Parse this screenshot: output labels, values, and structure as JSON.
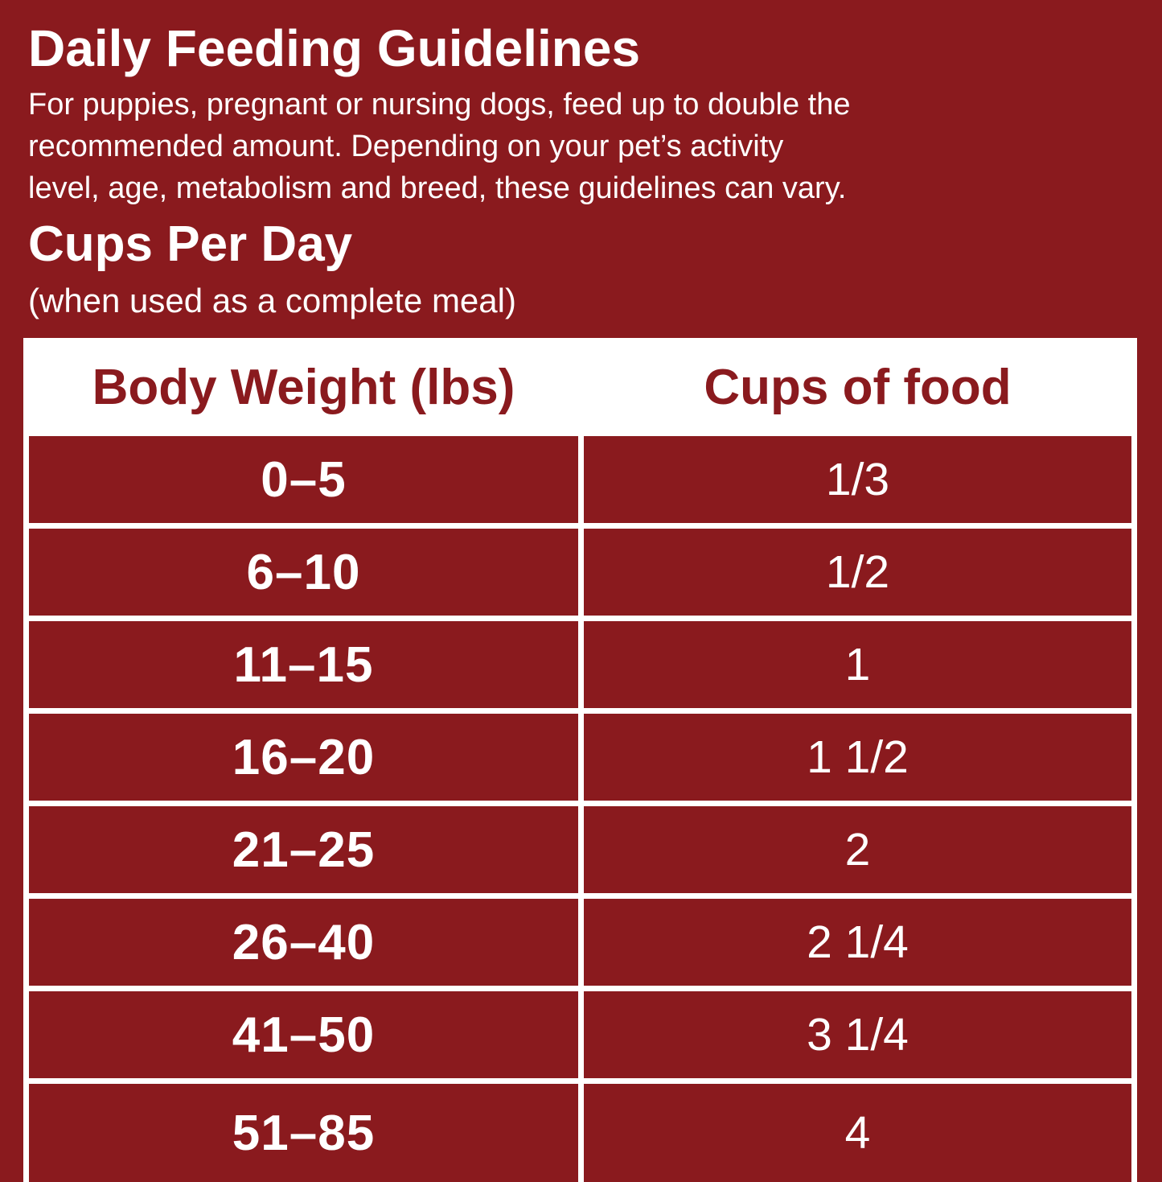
{
  "colors": {
    "background": "#8A1A1E",
    "surface": "#FFFFFF",
    "table_text": "#8A1A1E",
    "text": "#FFFFFF"
  },
  "intro": {
    "title": "Daily Feeding Guidelines",
    "description_lines": [
      "For puppies, pregnant or nursing dogs, feed up to double the",
      "recommended amount. Depending on your pet’s activity",
      "level, age, metabolism and breed, these guidelines can vary."
    ],
    "subheading": "Cups Per Day",
    "note": "(when used as a complete meal)"
  },
  "chart_data": {
    "type": "table",
    "title": "Cups Per Day",
    "subtitle": "(when used as a complete meal)",
    "columns": [
      "Body Weight (lbs)",
      "Cups of food"
    ],
    "rows": [
      {
        "weight": "0–5",
        "cups": "1/3"
      },
      {
        "weight": "6–10",
        "cups": "1/2"
      },
      {
        "weight": "11–15",
        "cups": "1"
      },
      {
        "weight": "16–20",
        "cups": "1 1/2"
      },
      {
        "weight": "21–25",
        "cups": "2"
      },
      {
        "weight": "26–40",
        "cups": "2 1/4"
      },
      {
        "weight": "41–50",
        "cups": "3 1/4"
      },
      {
        "weight": "51–85",
        "cups": "4"
      }
    ]
  }
}
